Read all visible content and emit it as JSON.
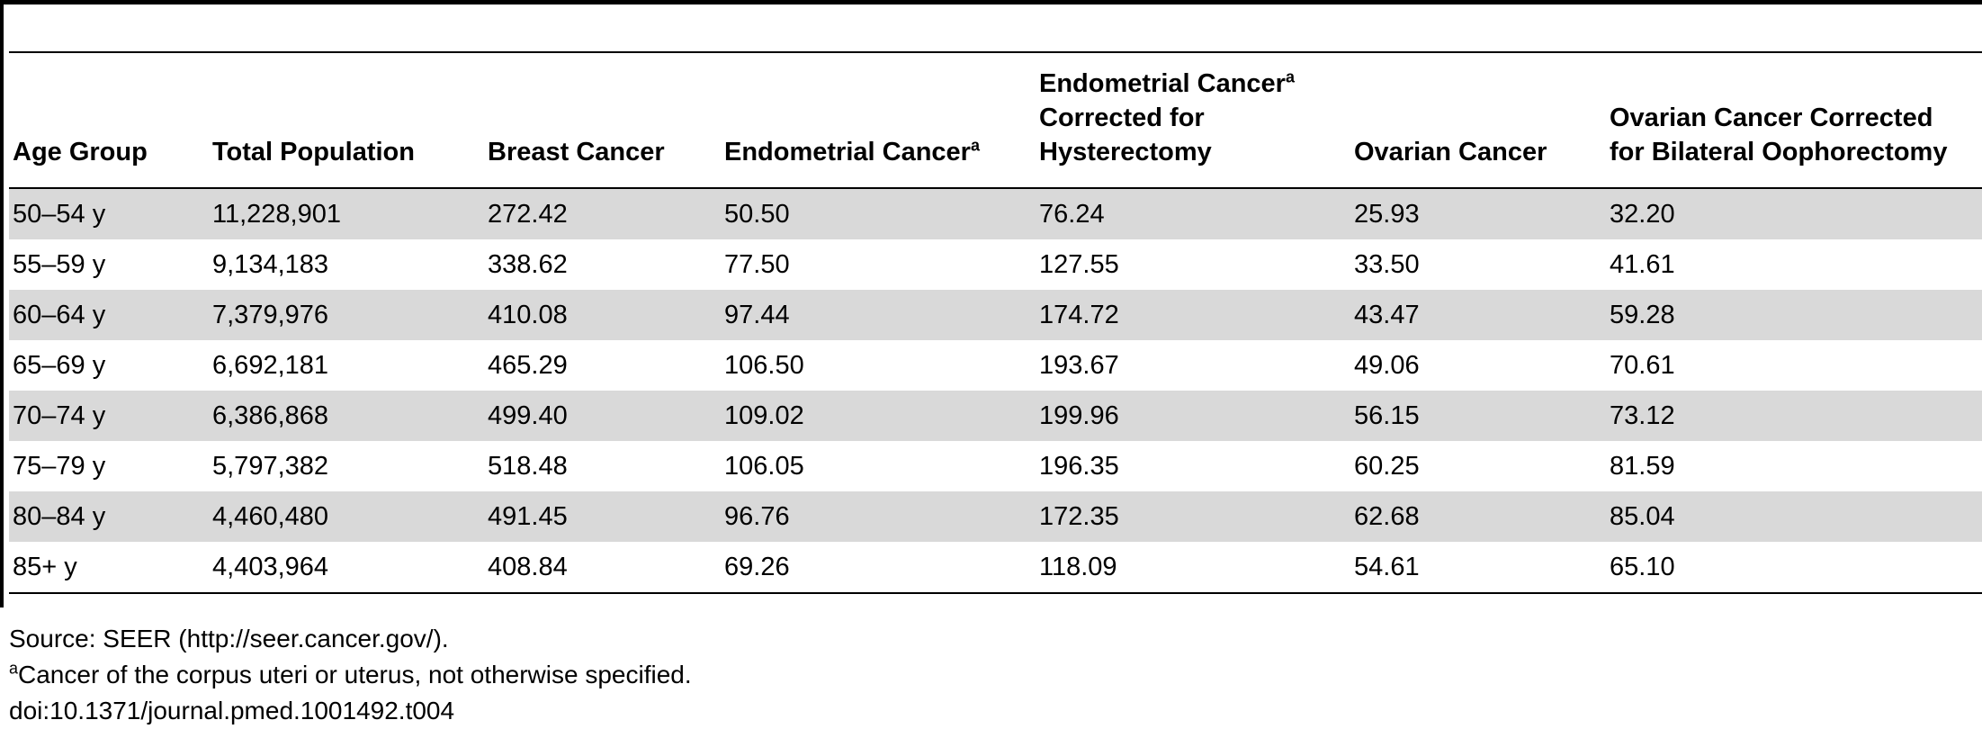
{
  "table": {
    "headers": [
      {
        "label": "Age Group",
        "sup": ""
      },
      {
        "label": "Total Population",
        "sup": ""
      },
      {
        "label": "Breast Cancer",
        "sup": ""
      },
      {
        "label": "Endometrial Cancer",
        "sup": "a"
      },
      {
        "label": "Endometrial Cancer",
        "sup": "a",
        "line2": "Corrected for",
        "line3": "Hysterectomy"
      },
      {
        "label": "Ovarian Cancer",
        "sup": ""
      },
      {
        "label": "Ovarian Cancer Corrected",
        "sup": "",
        "line2": "for Bilateral Oophorectomy"
      }
    ],
    "rows": [
      [
        "50–54 y",
        "11,228,901",
        "272.42",
        "50.50",
        "76.24",
        "25.93",
        "32.20"
      ],
      [
        "55–59 y",
        "9,134,183",
        "338.62",
        "77.50",
        "127.55",
        "33.50",
        "41.61"
      ],
      [
        "60–64 y",
        "7,379,976",
        "410.08",
        "97.44",
        "174.72",
        "43.47",
        "59.28"
      ],
      [
        "65–69 y",
        "6,692,181",
        "465.29",
        "106.50",
        "193.67",
        "49.06",
        "70.61"
      ],
      [
        "70–74 y",
        "6,386,868",
        "499.40",
        "109.02",
        "199.96",
        "56.15",
        "73.12"
      ],
      [
        "75–79 y",
        "5,797,382",
        "518.48",
        "106.05",
        "196.35",
        "60.25",
        "81.59"
      ],
      [
        "80–84 y",
        "4,460,480",
        "491.45",
        "96.76",
        "172.35",
        "62.68",
        "85.04"
      ],
      [
        "85+ y",
        "4,403,964",
        "408.84",
        "69.26",
        "118.09",
        "54.61",
        "65.10"
      ]
    ]
  },
  "footnotes": {
    "source": "Source: SEER (http://seer.cancer.gov/).",
    "note_a_marker": "a",
    "note_a": "Cancer of the corpus uteri or uterus, not otherwise specified.",
    "doi": "doi:10.1371/journal.pmed.1001492.t004"
  },
  "colors": {
    "row_shade": "#d9d9d9",
    "rule": "#000000"
  }
}
